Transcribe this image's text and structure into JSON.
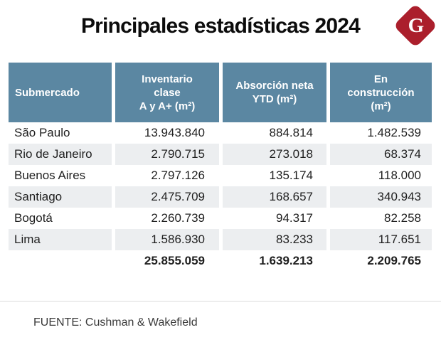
{
  "title": "Principales estadísticas 2024",
  "logo": {
    "letter": "G",
    "color": "#ab1f2c"
  },
  "colors": {
    "header_bg": "#5b87a2",
    "stripe_bg": "#eceef0",
    "accent_red": "#ab1f2c",
    "divider": "#dcdcdc"
  },
  "table": {
    "headers": [
      {
        "lines": [
          "Submercado"
        ]
      },
      {
        "lines": [
          "Inventario",
          "clase",
          "A y A+ (m²)"
        ]
      },
      {
        "lines": [
          "Absorción neta",
          "YTD (m²)"
        ]
      },
      {
        "lines": [
          "En",
          "construcción",
          "(m²)"
        ]
      }
    ],
    "rows": [
      {
        "submercado": "São Paulo",
        "inventario": "13.943.840",
        "absorcion": "884.814",
        "construccion": "1.482.539"
      },
      {
        "submercado": "Rio de Janeiro",
        "inventario": "2.790.715",
        "absorcion": "273.018",
        "construccion": "68.374"
      },
      {
        "submercado": "Buenos Aires",
        "inventario": "2.797.126",
        "absorcion": "135.174",
        "construccion": "118.000"
      },
      {
        "submercado": "Santiago",
        "inventario": "2.475.709",
        "absorcion": "168.657",
        "construccion": "340.943"
      },
      {
        "submercado": "Bogotá",
        "inventario": "2.260.739",
        "absorcion": "94.317",
        "construccion": "82.258"
      },
      {
        "submercado": "Lima",
        "inventario": "1.586.930",
        "absorcion": "83.233",
        "construccion": "117.651"
      }
    ],
    "totals": {
      "label": "",
      "inventario": "25.855.059",
      "absorcion": "1.639.213",
      "construccion": "2.209.765"
    }
  },
  "source": "FUENTE: Cushman & Wakefield",
  "chart_data": {
    "type": "table",
    "title": "Principales estadísticas 2024",
    "columns": [
      "Submercado",
      "Inventario clase A y A+ (m²)",
      "Absorción neta YTD (m²)",
      "En construcción (m²)"
    ],
    "rows": [
      [
        "São Paulo",
        13943840,
        884814,
        1482539
      ],
      [
        "Rio de Janeiro",
        2790715,
        273018,
        68374
      ],
      [
        "Buenos Aires",
        2797126,
        135174,
        118000
      ],
      [
        "Santiago",
        2475709,
        168657,
        340943
      ],
      [
        "Bogotá",
        2260739,
        94317,
        82258
      ],
      [
        "Lima",
        1586930,
        83233,
        117651
      ]
    ],
    "totals": [
      25855059,
      1639213,
      2209765
    ],
    "source": "FUENTE: Cushman & Wakefield"
  }
}
